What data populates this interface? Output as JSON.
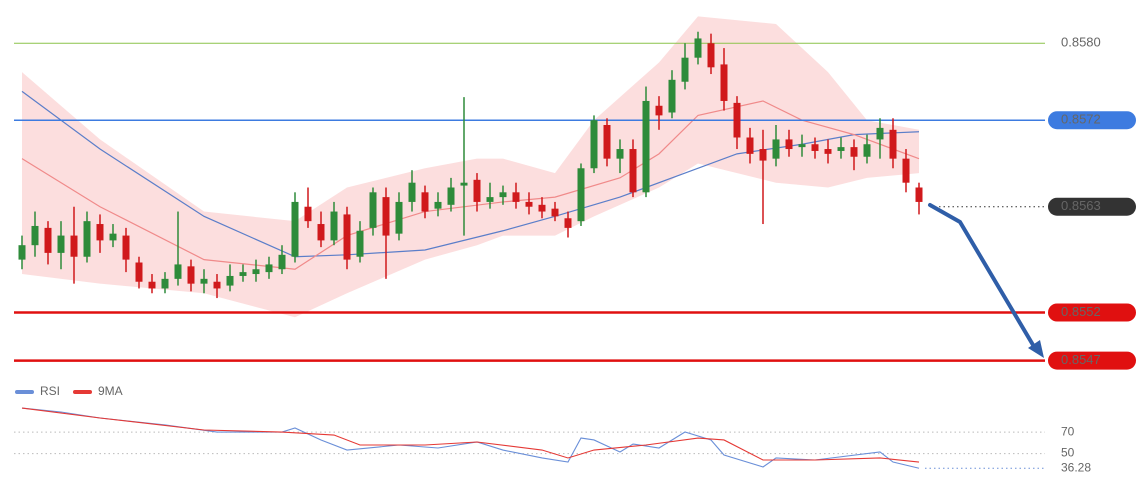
{
  "chart_data": [
    {
      "type": "candlestick",
      "xlim": [
        0,
        69
      ],
      "ylim": [
        0.85455,
        0.85845
      ],
      "up_color": "#2e8b3a",
      "down_color": "#d0191c",
      "open": [
        0.85575,
        0.8559,
        0.85608,
        0.85582,
        0.856,
        0.85578,
        0.85612,
        0.85595,
        0.856,
        0.85572,
        0.85552,
        0.85545,
        0.85555,
        0.85568,
        0.8555,
        0.85552,
        0.85548,
        0.85558,
        0.8556,
        0.85562,
        0.85565,
        0.85578,
        0.8563,
        0.85612,
        0.85595,
        0.85622,
        0.85578,
        0.85608,
        0.8564,
        0.85602,
        0.85635,
        0.85645,
        0.85628,
        0.85632,
        0.85652,
        0.85658,
        0.85635,
        0.8564,
        0.85645,
        0.85635,
        0.85632,
        0.85628,
        0.85618,
        0.85615,
        0.8567,
        0.85715,
        0.8568,
        0.8569,
        0.85645,
        0.85735,
        0.85728,
        0.8576,
        0.85785,
        0.858,
        0.85778,
        0.85738,
        0.85702,
        0.8569,
        0.8568,
        0.857,
        0.85692,
        0.85695,
        0.8569,
        0.85688,
        0.85692,
        0.85682,
        0.857,
        0.8571,
        0.8568,
        0.8565
      ],
      "high": [
        0.856,
        0.85625,
        0.85615,
        0.85615,
        0.8563,
        0.85625,
        0.85622,
        0.85612,
        0.85608,
        0.85578,
        0.8556,
        0.85562,
        0.85625,
        0.85575,
        0.85565,
        0.8556,
        0.8557,
        0.8557,
        0.85575,
        0.85578,
        0.8559,
        0.85645,
        0.8565,
        0.85625,
        0.85635,
        0.8563,
        0.85615,
        0.8565,
        0.8565,
        0.85645,
        0.85668,
        0.85652,
        0.85645,
        0.8566,
        0.85744,
        0.85665,
        0.85655,
        0.85652,
        0.85655,
        0.85645,
        0.8564,
        0.85635,
        0.85625,
        0.85675,
        0.85725,
        0.85722,
        0.857,
        0.857,
        0.85755,
        0.85745,
        0.85772,
        0.858,
        0.85812,
        0.8581,
        0.85795,
        0.85745,
        0.85712,
        0.8571,
        0.85715,
        0.8571,
        0.85705,
        0.85702,
        0.857,
        0.85702,
        0.857,
        0.85705,
        0.85722,
        0.85722,
        0.8569,
        0.85655
      ],
      "low": [
        0.85565,
        0.85578,
        0.8557,
        0.85565,
        0.8555,
        0.85572,
        0.85582,
        0.85588,
        0.85562,
        0.85545,
        0.8554,
        0.8554,
        0.85548,
        0.85542,
        0.8554,
        0.85535,
        0.85542,
        0.85552,
        0.85552,
        0.85555,
        0.8556,
        0.85572,
        0.85608,
        0.85588,
        0.8559,
        0.85565,
        0.85572,
        0.856,
        0.85555,
        0.85595,
        0.85625,
        0.85618,
        0.8562,
        0.85625,
        0.856,
        0.85625,
        0.85628,
        0.85632,
        0.85628,
        0.85622,
        0.85618,
        0.85615,
        0.85598,
        0.8561,
        0.85665,
        0.85672,
        0.85665,
        0.8564,
        0.8564,
        0.8571,
        0.85722,
        0.85752,
        0.85778,
        0.85768,
        0.8573,
        0.8569,
        0.85675,
        0.85612,
        0.85672,
        0.85682,
        0.85682,
        0.8568,
        0.85675,
        0.8568,
        0.85668,
        0.85675,
        0.8568,
        0.8567,
        0.85645,
        0.85622
      ],
      "close": [
        0.8559,
        0.8561,
        0.85582,
        0.856,
        0.85578,
        0.85615,
        0.85595,
        0.85602,
        0.85575,
        0.85552,
        0.85545,
        0.85555,
        0.8557,
        0.8555,
        0.85555,
        0.85545,
        0.85558,
        0.85562,
        0.85565,
        0.8557,
        0.8558,
        0.85635,
        0.85615,
        0.85595,
        0.85625,
        0.85575,
        0.85605,
        0.85645,
        0.856,
        0.85635,
        0.85655,
        0.85625,
        0.85635,
        0.8565,
        0.85655,
        0.85635,
        0.8564,
        0.85645,
        0.85635,
        0.8563,
        0.85625,
        0.8562,
        0.85608,
        0.8567,
        0.8572,
        0.8568,
        0.8569,
        0.85645,
        0.8574,
        0.85725,
        0.85762,
        0.85785,
        0.85805,
        0.85775,
        0.8574,
        0.85702,
        0.85685,
        0.85678,
        0.857,
        0.8569,
        0.85695,
        0.85688,
        0.85685,
        0.85692,
        0.85682,
        0.85695,
        0.85712,
        0.8568,
        0.85655,
        0.85635
      ],
      "band": {
        "color": "#fbd3d3",
        "x": [
          0,
          6,
          14,
          21,
          25,
          31,
          35,
          37,
          41,
          44,
          49,
          52,
          58,
          62,
          65,
          69
        ],
        "upper": [
          0.8577,
          0.857,
          0.85625,
          0.85615,
          0.8565,
          0.8567,
          0.8568,
          0.8568,
          0.85665,
          0.8572,
          0.8578,
          0.85828,
          0.8582,
          0.8577,
          0.8572,
          0.8571
        ],
        "lower": [
          0.8556,
          0.8555,
          0.8554,
          0.85515,
          0.8554,
          0.85575,
          0.8559,
          0.856,
          0.856,
          0.8562,
          0.8565,
          0.85675,
          0.85655,
          0.8565,
          0.8566,
          0.85665
        ]
      },
      "ma_slow": {
        "color": "#5b7ec9",
        "x": [
          0,
          6,
          14,
          21,
          25,
          31,
          37,
          41,
          46,
          51,
          55,
          60,
          64,
          69
        ],
        "values": [
          0.8575,
          0.8569,
          0.8562,
          0.85578,
          0.8558,
          0.85585,
          0.85605,
          0.8562,
          0.8564,
          0.85665,
          0.85685,
          0.85695,
          0.85705,
          0.85708
        ]
      },
      "ma_fast": {
        "color": "#f08a8a",
        "x": [
          0,
          6,
          14,
          21,
          25,
          31,
          37,
          41,
          46,
          49,
          52,
          57,
          60,
          64,
          69
        ],
        "values": [
          0.8568,
          0.8563,
          0.85575,
          0.85565,
          0.856,
          0.85625,
          0.85635,
          0.8564,
          0.8566,
          0.85685,
          0.85725,
          0.8574,
          0.8572,
          0.85705,
          0.8568
        ]
      },
      "levels": [
        {
          "value": 0.858,
          "label": "0.8580",
          "color": "#8bc34a",
          "style": "thin",
          "label_style": "text"
        },
        {
          "value": 0.8572,
          "label": "0.8572",
          "color": "#3d7be0",
          "style": "solid",
          "label_style": "pill"
        },
        {
          "value": 0.8563,
          "label": "0.8563",
          "color": "#333333",
          "style": "dotted",
          "label_style": "pill"
        },
        {
          "value": 0.8552,
          "label": "0.8552",
          "color": "#e01010",
          "style": "thick",
          "label_style": "pill"
        },
        {
          "value": 0.8547,
          "label": "0.8547",
          "color": "#e01010",
          "style": "thick",
          "label_style": "pill"
        }
      ]
    },
    {
      "type": "line",
      "xlim": [
        0,
        69
      ],
      "ylim": [
        30,
        100
      ],
      "yticks": [
        70,
        50
      ],
      "grid": true,
      "series": [
        {
          "name": "RSI",
          "color": "#6a8fd8",
          "x": [
            0,
            3,
            6,
            11,
            15,
            20,
            21,
            23,
            25,
            29,
            32,
            35,
            37,
            40,
            42,
            43,
            44,
            46,
            47,
            49,
            51,
            53,
            54,
            57,
            58,
            61,
            66,
            67,
            69
          ],
          "values": [
            92.5,
            88.8,
            83.2,
            76.7,
            70.1,
            70.1,
            73.9,
            62.7,
            53.3,
            58,
            55.2,
            60.8,
            53.3,
            45.9,
            42.1,
            64.5,
            62.7,
            51.5,
            58.9,
            55.2,
            70.1,
            62.7,
            48.7,
            37.5,
            45.9,
            44,
            51.5,
            42.1,
            36.28
          ]
        },
        {
          "name": "9MA",
          "color": "#e53935",
          "x": [
            0,
            6,
            14,
            20,
            24,
            26,
            31,
            35,
            40,
            42,
            44,
            48,
            52,
            54,
            57,
            61,
            66,
            69
          ],
          "values": [
            92.5,
            83.2,
            72,
            70.1,
            67.3,
            58,
            58,
            60.8,
            53.3,
            45.9,
            53.3,
            58,
            64.5,
            62.7,
            44,
            44,
            45.9,
            42.1
          ]
        }
      ]
    }
  ]
}
